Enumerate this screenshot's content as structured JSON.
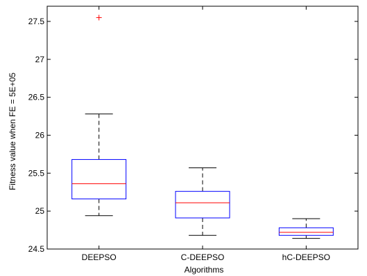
{
  "chart_data": {
    "type": "box",
    "xlabel": "Algorithms",
    "ylabel": "Fitness value when FE = 5E+05",
    "ylim": [
      24.5,
      27.7
    ],
    "yticks": [
      "24.5",
      "25",
      "25.5",
      "26",
      "26.5",
      "27",
      "27.5"
    ],
    "categories": [
      "DEEPSO",
      "C-DEEPSO",
      "hC-DEEPSO"
    ],
    "boxes": [
      {
        "name": "DEEPSO",
        "whisker_low": 24.94,
        "q1": 25.16,
        "median": 25.36,
        "q3": 25.68,
        "whisker_high": 26.28,
        "outliers": [
          27.55
        ]
      },
      {
        "name": "C-DEEPSO",
        "whisker_low": 24.68,
        "q1": 24.91,
        "median": 25.11,
        "q3": 25.26,
        "whisker_high": 25.57,
        "outliers": []
      },
      {
        "name": "hC-DEEPSO",
        "whisker_low": 24.64,
        "q1": 24.68,
        "median": 24.72,
        "q3": 24.78,
        "whisker_high": 24.9,
        "outliers": []
      }
    ],
    "colors": {
      "box": "#0000ff",
      "median": "#ff0000",
      "whisker": "#000000",
      "outlier": "#ff0000"
    },
    "grid": false,
    "legend": "none"
  }
}
